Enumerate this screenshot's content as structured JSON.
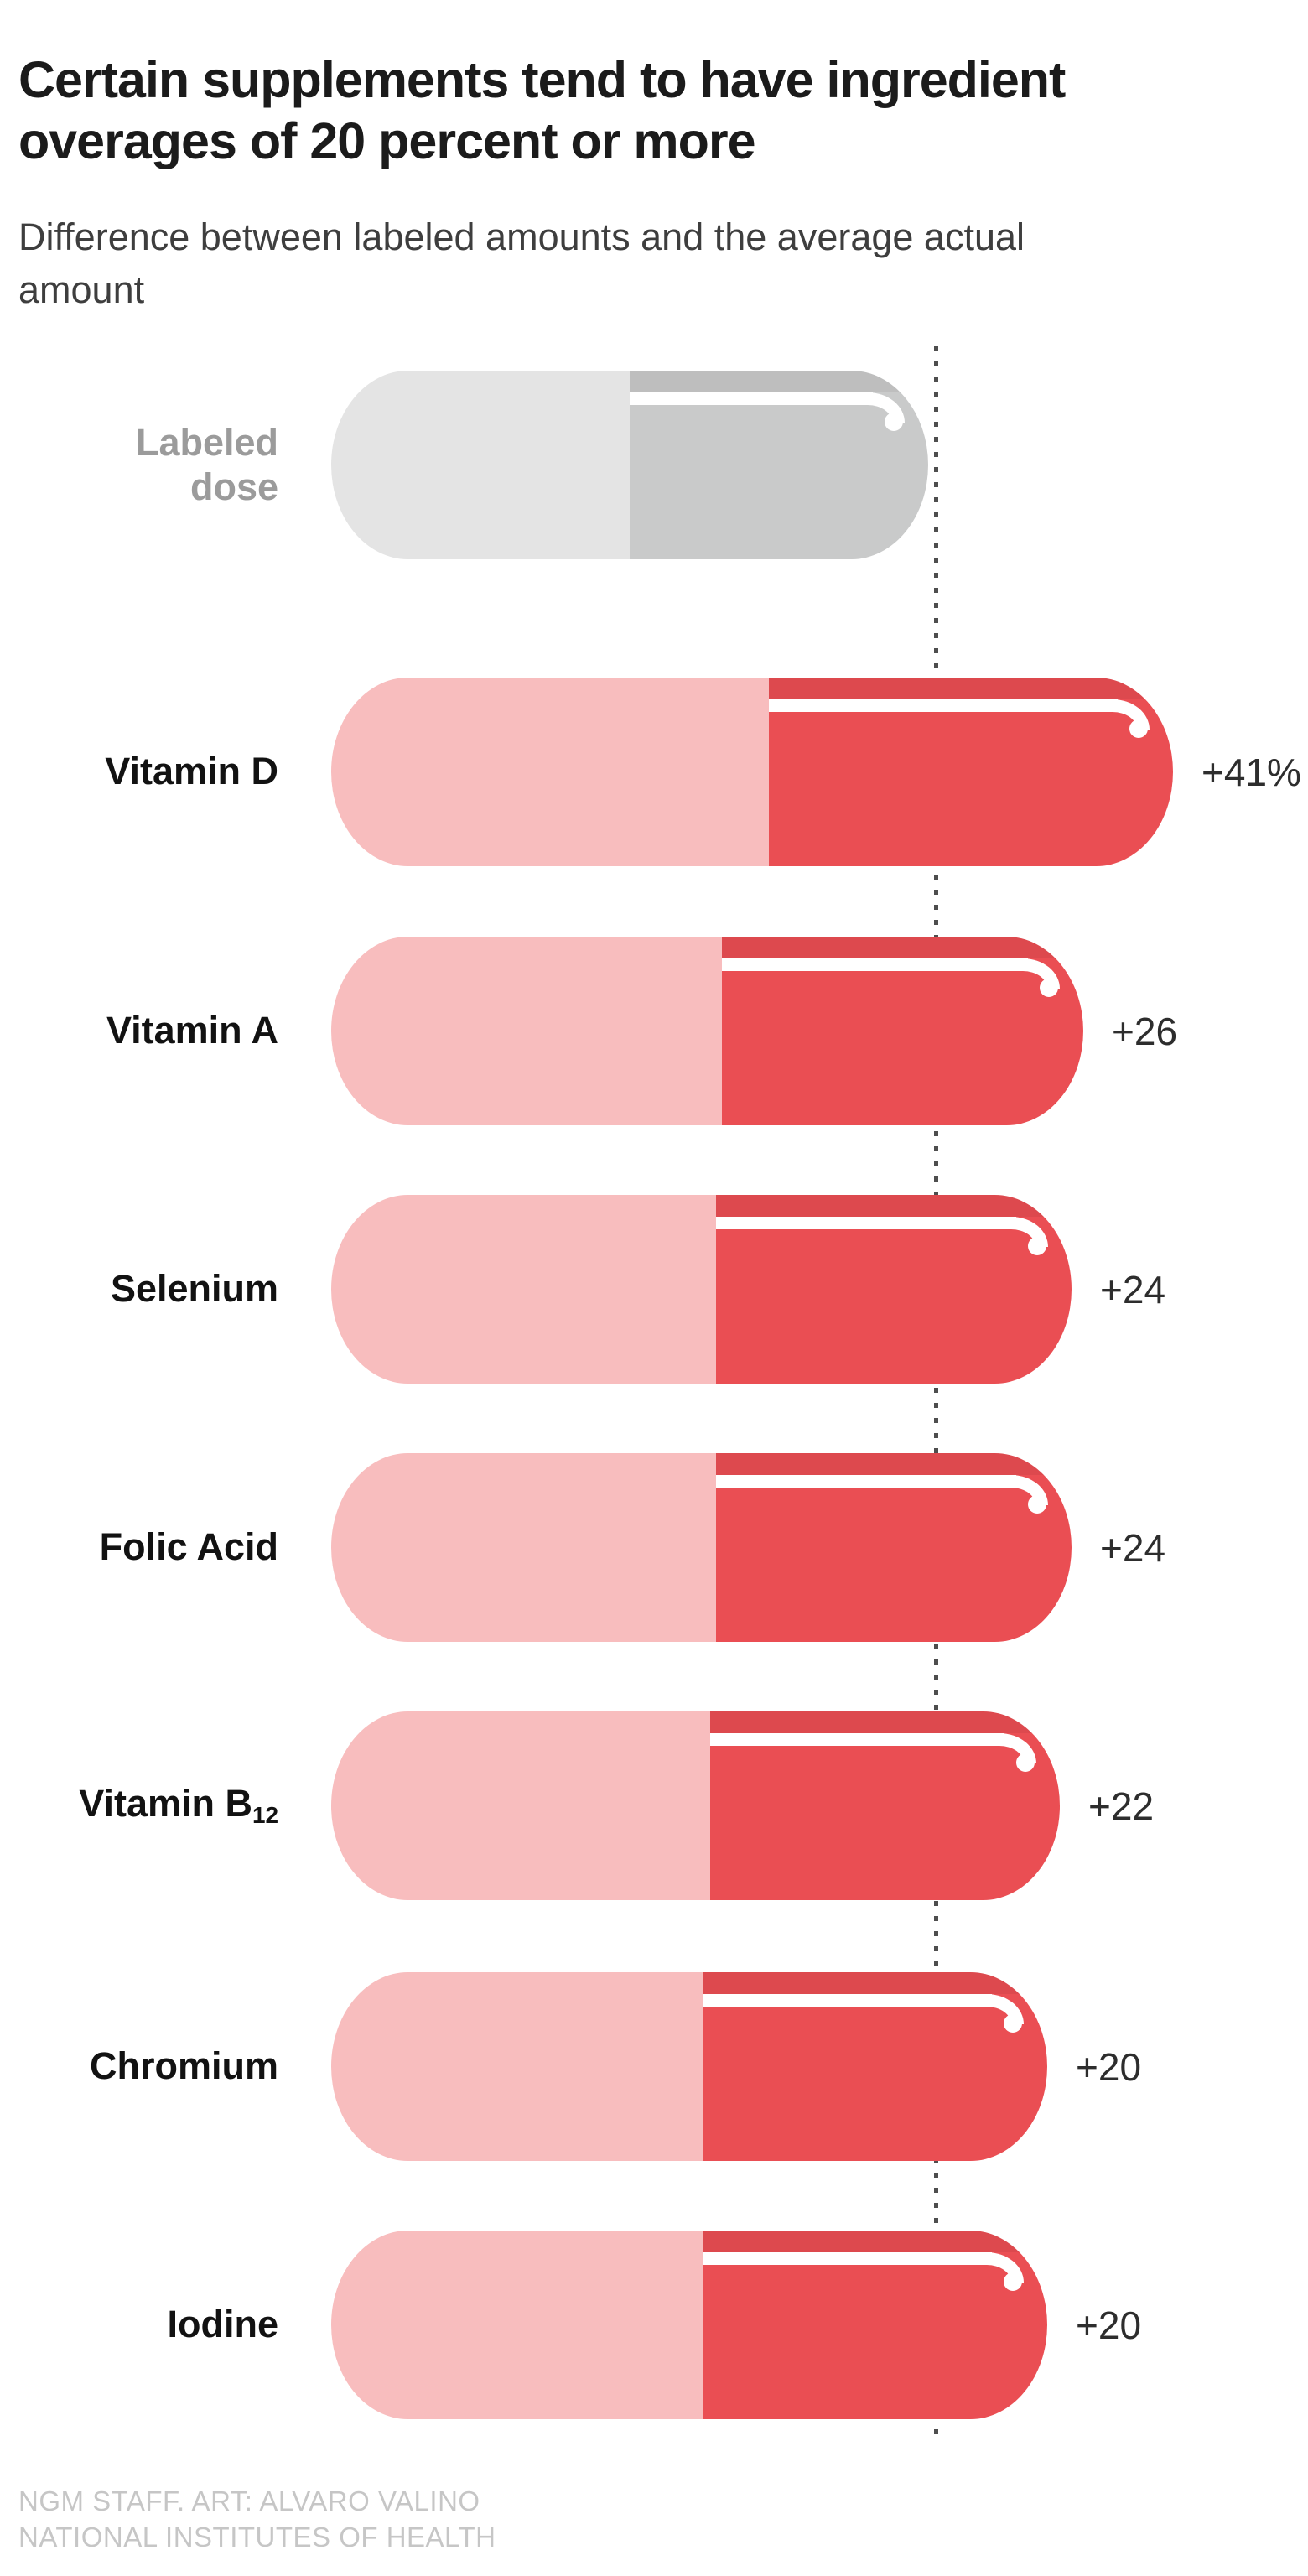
{
  "header": {
    "title": "Certain supplements tend to have ingredient overages of 20 percent or more",
    "subtitle": "Difference between labeled amounts and the average actual amount"
  },
  "labeled_dose": {
    "label_line1": "Labeled",
    "label_line2": "dose",
    "overage": 0
  },
  "rows": [
    {
      "label": "Vitamin D",
      "value": "+41%",
      "overage": 41
    },
    {
      "label": "Vitamin A",
      "value": "+26",
      "overage": 26
    },
    {
      "label": "Selenium",
      "value": "+24",
      "overage": 24
    },
    {
      "label": "Folic Acid",
      "value": "+24",
      "overage": 24
    },
    {
      "label": "Vitamin B",
      "label_sub": "12",
      "value": "+22",
      "overage": 22
    },
    {
      "label": "Chromium",
      "value": "+20",
      "overage": 20
    },
    {
      "label": "Iodine",
      "value": "+20",
      "overage": 20
    }
  ],
  "footer": {
    "line1": "NGM STAFF. ART: ALVARO VALINO",
    "line2": "NATIONAL INSTITUTES OF HEALTH"
  },
  "colors": {
    "pink": "#f8bdbe",
    "red": "#ea4e53",
    "gray_light": "#e4e4e4",
    "gray_mid": "#c9caca",
    "label_gray": "#9b9b9b",
    "reference_line": "#4e4e4e",
    "title": "#1b1b1b",
    "footer": "#c6c6c6"
  },
  "chart_data": {
    "type": "bar",
    "orientation": "horizontal",
    "title": "Certain supplements tend to have ingredient overages of 20 percent or more",
    "subtitle": "Difference between labeled amounts and the average actual amount",
    "categories": [
      "Vitamin D",
      "Vitamin A",
      "Selenium",
      "Folic Acid",
      "Vitamin B12",
      "Chromium",
      "Iodine"
    ],
    "values": [
      41,
      26,
      24,
      24,
      22,
      20,
      20
    ],
    "value_labels": [
      "+41%",
      "+26",
      "+24",
      "+24",
      "+22",
      "+20",
      "+20"
    ],
    "unit": "percent overage relative to labeled dose",
    "baseline_label": "Labeled dose",
    "baseline_value_percent": 100,
    "reference_line": "dotted vertical line at labeled dose (100%)",
    "legend_position": "top row capsule",
    "grid": false,
    "source": "NATIONAL INSTITUTES OF HEALTH"
  }
}
